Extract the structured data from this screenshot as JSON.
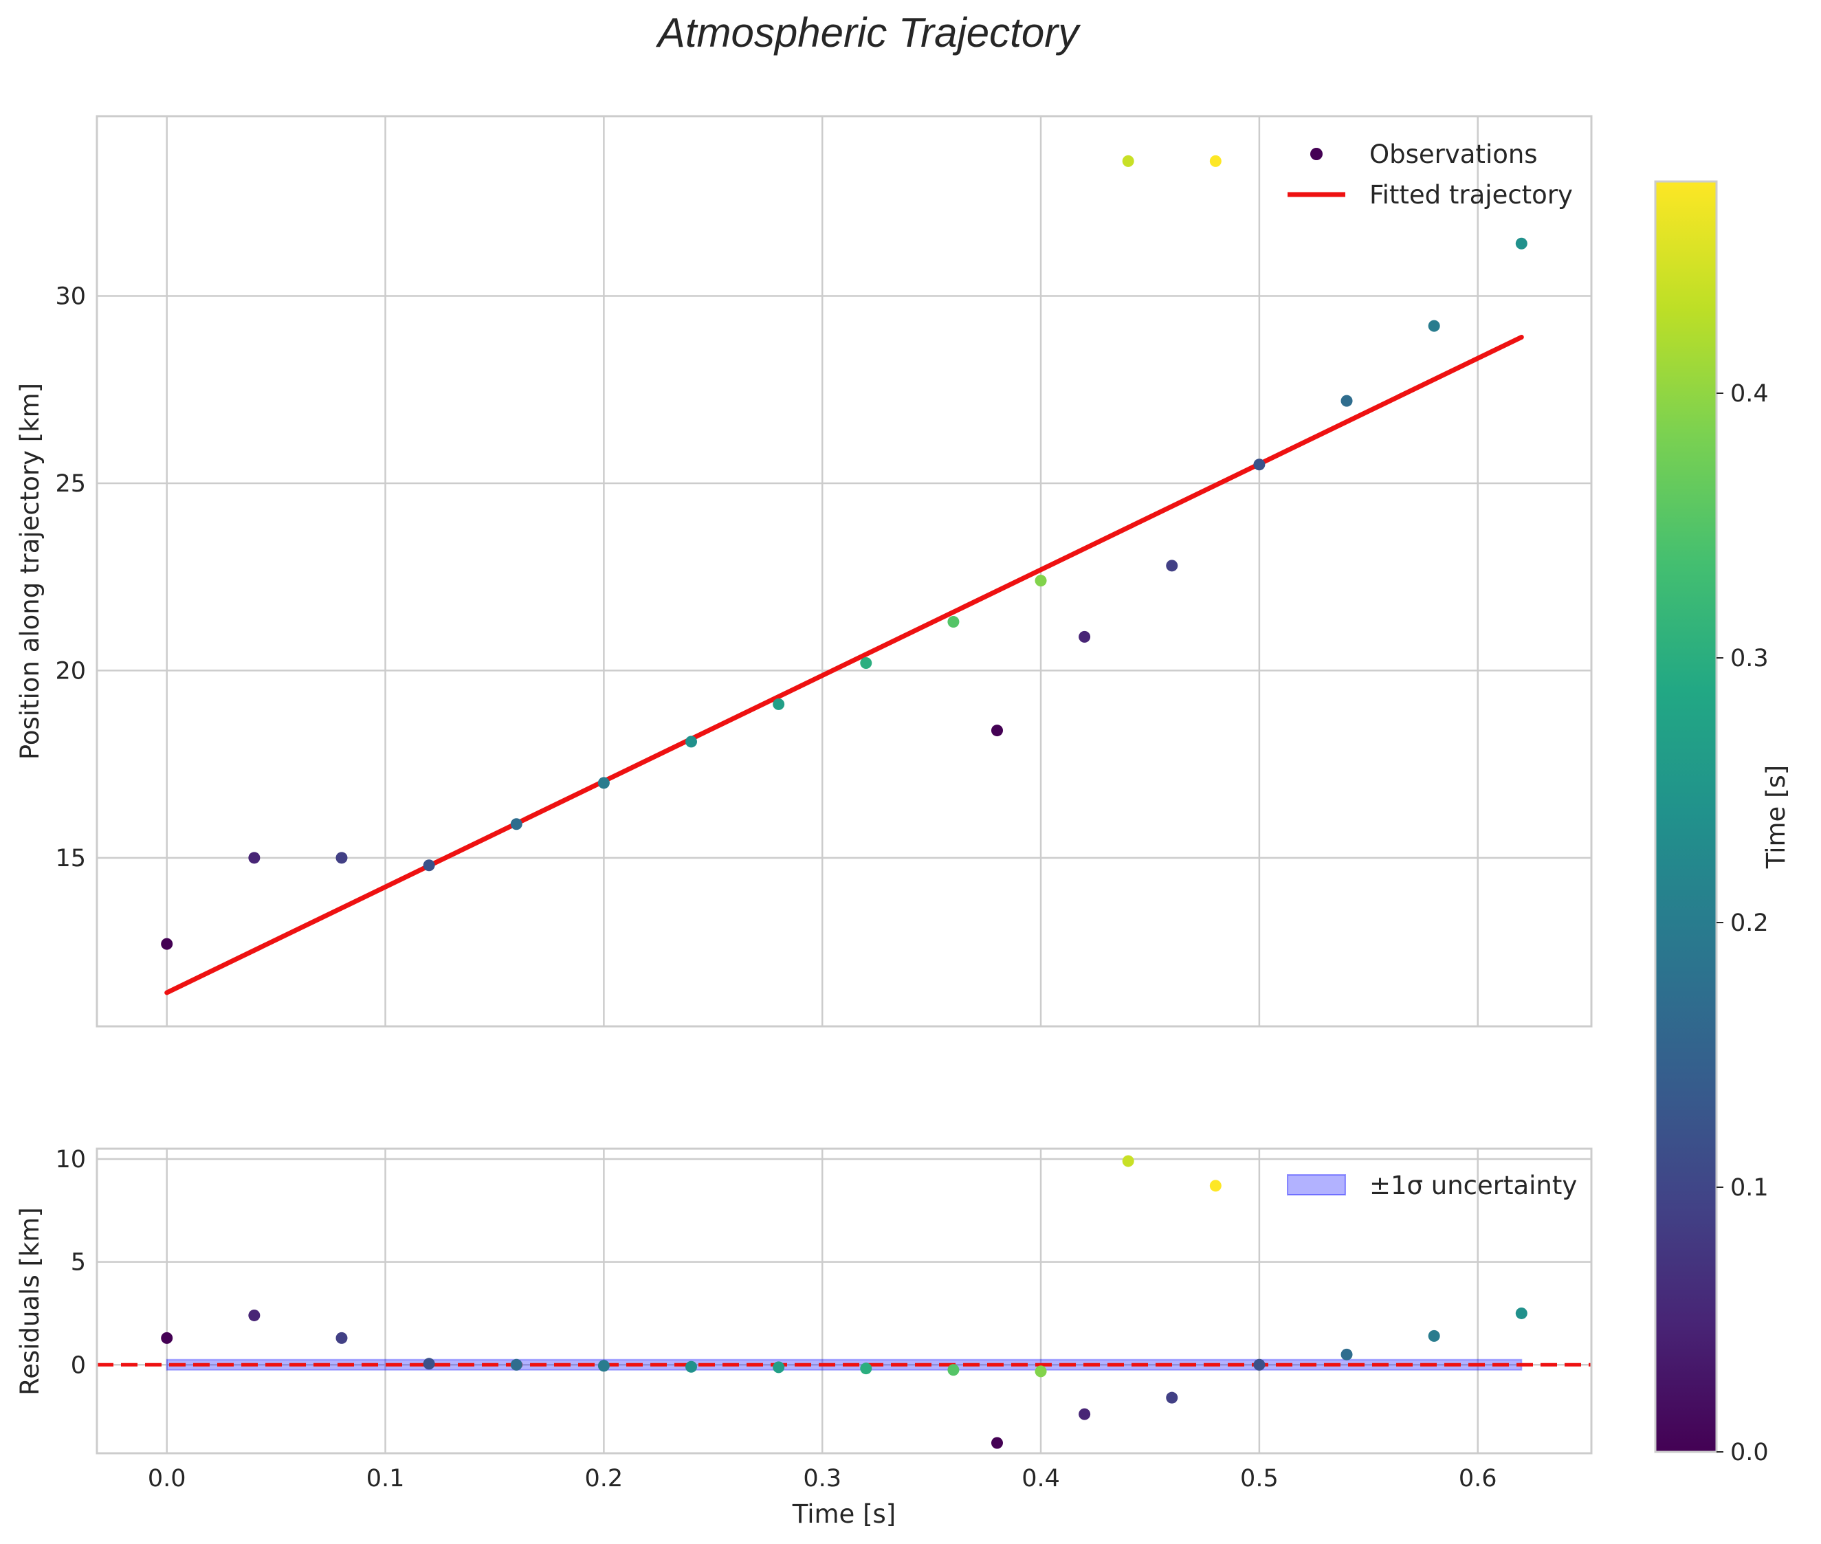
{
  "chart_data": {
    "type": "scatter",
    "title": "Atmospheric Trajectory",
    "colormap": "viridis",
    "observations": {
      "time": [
        0.0,
        0.04,
        0.08,
        0.12,
        0.16,
        0.2,
        0.24,
        0.28,
        0.32,
        0.36,
        0.38,
        0.4,
        0.42,
        0.44,
        0.46,
        0.48,
        0.5,
        0.54,
        0.58,
        0.62
      ],
      "position": [
        12.7,
        15.0,
        15.0,
        14.8,
        15.9,
        17.0,
        18.1,
        19.1,
        20.2,
        21.3,
        18.4,
        22.4,
        20.9,
        33.6,
        22.8,
        33.6,
        25.5,
        27.2,
        29.2,
        31.4
      ],
      "residual": [
        1.3,
        2.4,
        1.3,
        0.05,
        0.0,
        -0.05,
        -0.1,
        -0.12,
        -0.18,
        -0.25,
        -3.8,
        -0.32,
        -2.4,
        9.9,
        -1.6,
        8.7,
        0.0,
        0.5,
        1.4,
        2.5
      ],
      "color_value": [
        0.0,
        0.05,
        0.09,
        0.12,
        0.17,
        0.2,
        0.24,
        0.27,
        0.3,
        0.35,
        0.0,
        0.39,
        0.05,
        0.44,
        0.09,
        0.48,
        0.12,
        0.17,
        0.2,
        0.24
      ]
    },
    "fit": {
      "name": "Fitted trajectory",
      "x": [
        0.0,
        0.62
      ],
      "y": [
        11.4,
        28.9
      ],
      "color": "#ee1111"
    },
    "panels": [
      {
        "name": "main",
        "ylabel": "Position along trajectory [km]",
        "xlim": [
          -0.032,
          0.652
        ],
        "ylim": [
          10.5,
          34.8
        ],
        "yticks": [
          15,
          20,
          25,
          30
        ],
        "legend": [
          "Observations",
          "Fitted trajectory"
        ],
        "legend_position": "top-right"
      },
      {
        "name": "residuals",
        "ylabel": "Residuals [km]",
        "xlabel": "Time [s]",
        "xlim": [
          -0.032,
          0.652
        ],
        "ylim": [
          -4.3,
          10.5
        ],
        "yticks": [
          0,
          5,
          10
        ],
        "xticks": [
          0.0,
          0.1,
          0.2,
          0.3,
          0.4,
          0.5,
          0.6
        ],
        "xtick_labels": [
          "0.0",
          "0.1",
          "0.2",
          "0.3",
          "0.4",
          "0.5",
          "0.6"
        ],
        "zero_line_color": "#ee1111",
        "band": {
          "label": "±1σ uncertainty",
          "sigma": 0.25,
          "x": [
            0.0,
            0.62
          ],
          "color": "#0000ff"
        },
        "legend": [
          "±1σ uncertainty"
        ],
        "legend_position": "top-right"
      }
    ],
    "colorbar": {
      "label": "Time [s]",
      "range": [
        0.0,
        0.48
      ],
      "ticks": [
        0.0,
        0.1,
        0.2,
        0.3,
        0.4
      ],
      "tick_labels": [
        "0.0",
        "0.1",
        "0.2",
        "0.3",
        "0.4"
      ]
    }
  }
}
